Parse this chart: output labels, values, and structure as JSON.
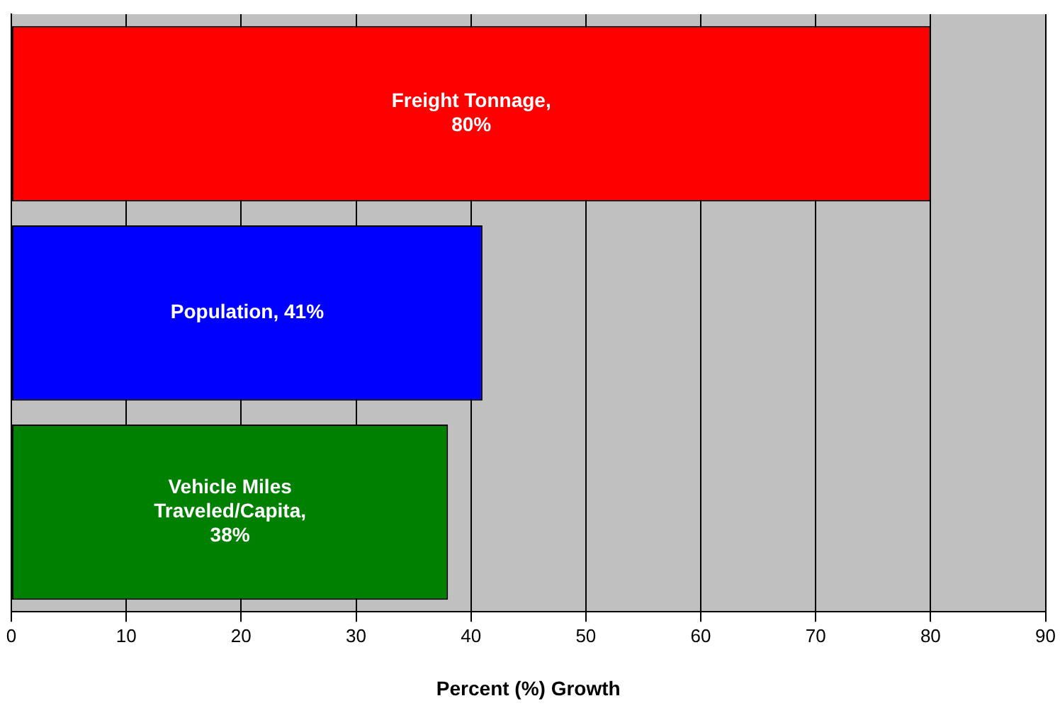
{
  "chart_data": {
    "type": "bar",
    "orientation": "horizontal",
    "xlabel": "Percent (%) Growth",
    "categories": [
      null,
      null,
      null
    ],
    "values": [
      80,
      41,
      38
    ],
    "colors": [
      "#ff0000",
      "#0000ff",
      "#008000"
    ],
    "value_labels": [
      "Freight Tonnage,\n80%",
      "Population, 41%",
      "Vehicle Miles\nTraveled/Capita,\n38%"
    ],
    "xlim": [
      0,
      90
    ],
    "xticks": [
      0,
      10,
      20,
      30,
      40,
      50,
      60,
      70,
      80,
      90
    ],
    "grid": "x",
    "legend": false
  }
}
